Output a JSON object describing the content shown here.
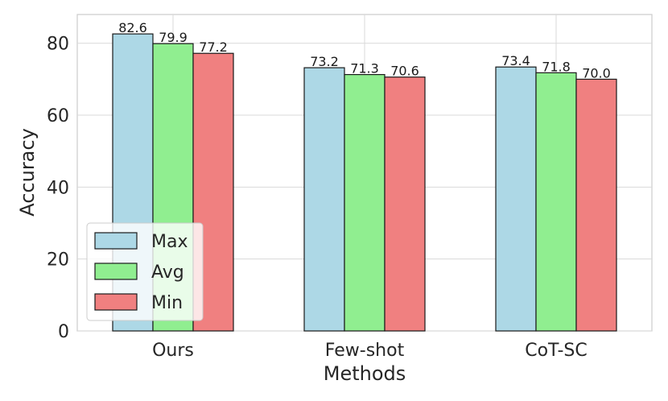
{
  "chart_data": {
    "type": "bar",
    "xlabel": "Methods",
    "ylabel": "Accuracy",
    "categories": [
      "Ours",
      "Few-shot",
      "CoT-SC"
    ],
    "series": [
      {
        "name": "Max",
        "values": [
          82.6,
          73.2,
          73.4
        ],
        "color": "#add8e6"
      },
      {
        "name": "Avg",
        "values": [
          79.9,
          71.3,
          71.8
        ],
        "color": "#90ee90"
      },
      {
        "name": "Min",
        "values": [
          77.2,
          70.6,
          70.0
        ],
        "color": "#f08080"
      }
    ],
    "value_labels": [
      [
        "82.6",
        "73.2",
        "73.4"
      ],
      [
        "79.9",
        "71.3",
        "71.8"
      ],
      [
        "77.2",
        "70.6",
        "70.0"
      ]
    ],
    "ylim": [
      0,
      88
    ],
    "yticks": [
      0,
      20,
      40,
      60,
      80
    ],
    "grid": true,
    "legend_position": "lower-left"
  }
}
